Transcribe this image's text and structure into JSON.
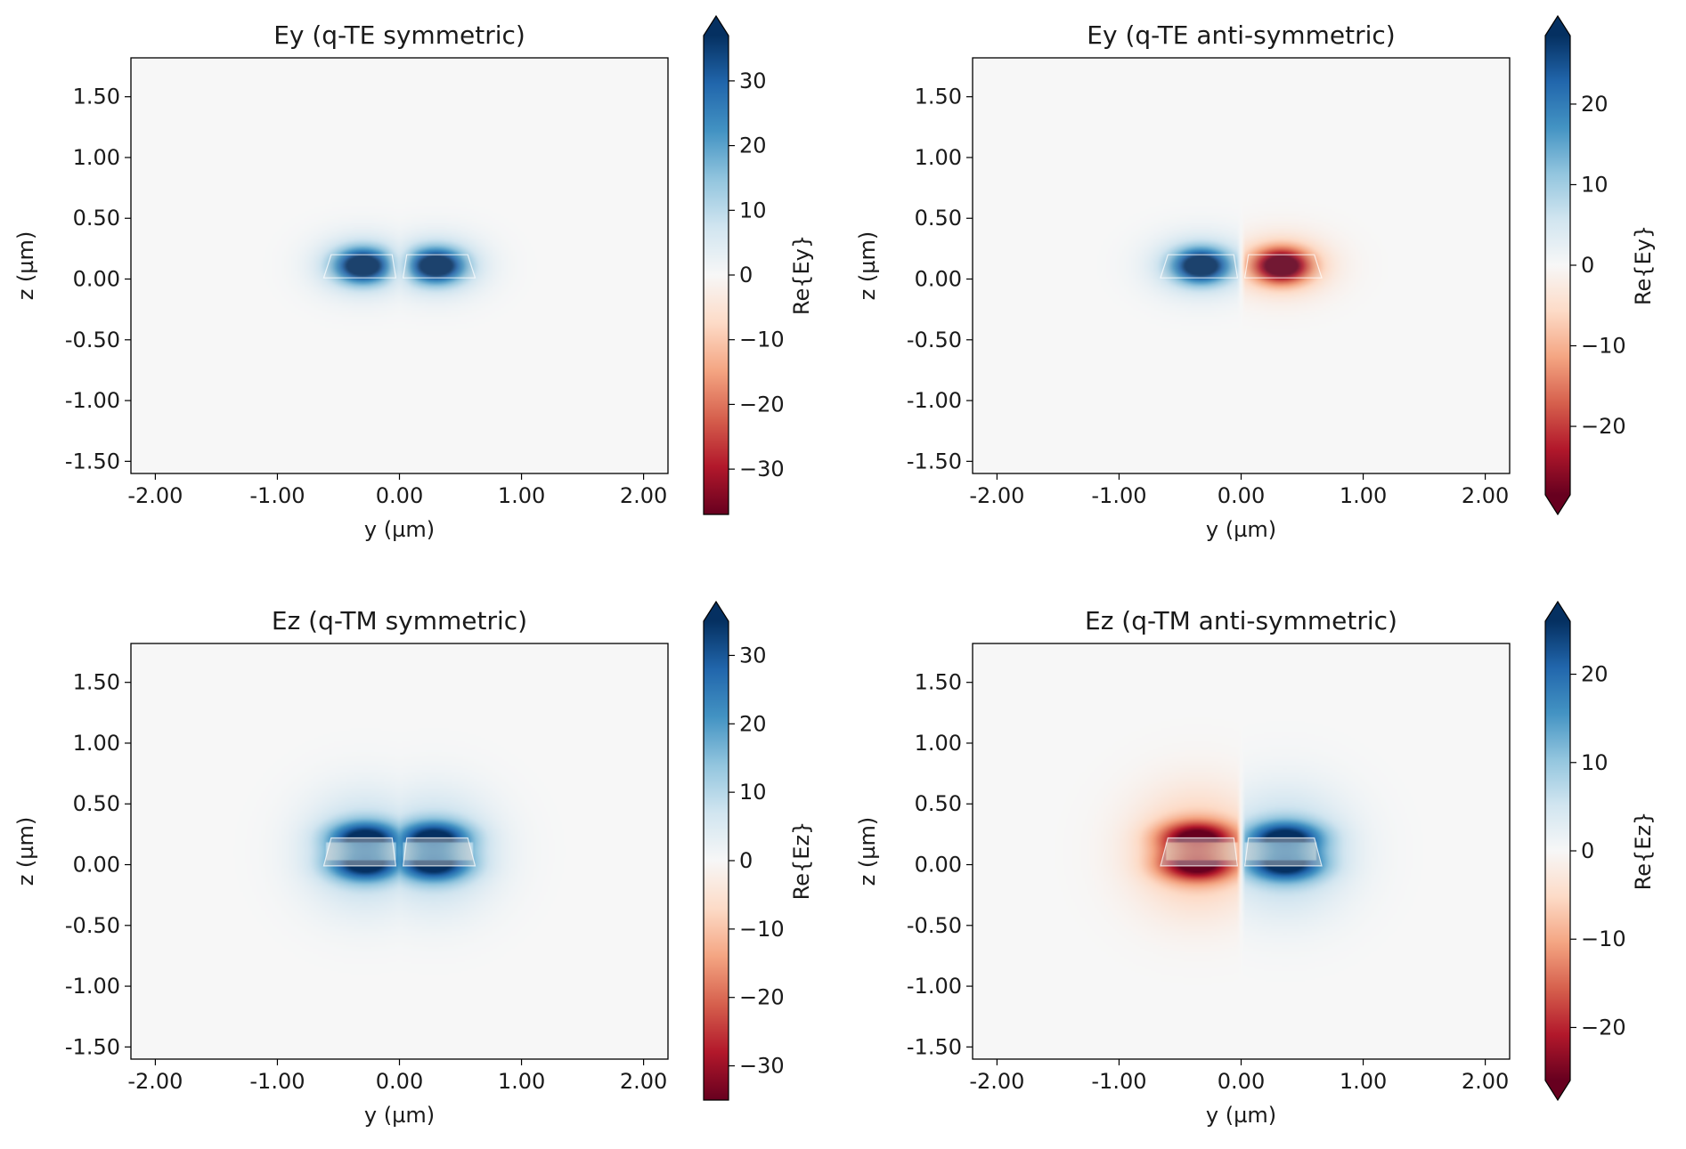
{
  "chart_data": [
    {
      "type": "heatmap",
      "title": "Ey (q-TE symmetric)",
      "xlabel": "y (µm)",
      "ylabel": "z (µm)",
      "colorbar_label": "Re{Ey}",
      "xlim": [
        -2.2,
        2.2
      ],
      "ylim": [
        -1.6,
        1.82
      ],
      "x_ticks": [
        -2,
        -1,
        0,
        1,
        2
      ],
      "x_tick_labels": [
        "-2.00",
        "-1.00",
        "0.00",
        "1.00",
        "2.00"
      ],
      "y_ticks": [
        1.5,
        1.0,
        0.5,
        0.0,
        -0.5,
        -1.0,
        -1.5
      ],
      "y_tick_labels": [
        "1.50",
        "1.00",
        "0.50",
        "0.00",
        "-0.50",
        "-1.00",
        "-1.50"
      ],
      "clim": [
        -37,
        37
      ],
      "colorbar_ticks": [
        30,
        20,
        10,
        0,
        -10,
        -20,
        -30
      ],
      "colorbar_tick_labels": [
        "30",
        "20",
        "10",
        "0",
        "−10",
        "−20",
        "−30"
      ],
      "colorbar_extend": "upper",
      "colormap": "RdBu",
      "mode": "te_sym",
      "field_peaks": [
        {
          "y": -0.3,
          "z": 0.11,
          "value": 37
        },
        {
          "y": 0.3,
          "z": 0.11,
          "value": 37
        }
      ]
    },
    {
      "type": "heatmap",
      "title": "Ey (q-TE anti-symmetric)",
      "xlabel": "y (µm)",
      "ylabel": "z (µm)",
      "colorbar_label": "Re{Ey}",
      "xlim": [
        -2.2,
        2.2
      ],
      "ylim": [
        -1.6,
        1.82
      ],
      "x_ticks": [
        -2,
        -1,
        0,
        1,
        2
      ],
      "x_tick_labels": [
        "-2.00",
        "-1.00",
        "0.00",
        "1.00",
        "2.00"
      ],
      "y_ticks": [
        1.5,
        1.0,
        0.5,
        0.0,
        -0.5,
        -1.0,
        -1.5
      ],
      "y_tick_labels": [
        "1.50",
        "1.00",
        "0.50",
        "0.00",
        "-0.50",
        "-1.00",
        "-1.50"
      ],
      "clim": [
        -28.5,
        28.5
      ],
      "colorbar_ticks": [
        20,
        10,
        0,
        -10,
        -20
      ],
      "colorbar_tick_labels": [
        "20",
        "10",
        "0",
        "−10",
        "−20"
      ],
      "colorbar_extend": "both",
      "colormap": "RdBu",
      "mode": "te_anti",
      "field_peaks": [
        {
          "y": -0.33,
          "z": 0.11,
          "value": 28.5
        },
        {
          "y": 0.33,
          "z": 0.11,
          "value": -28.5
        }
      ]
    },
    {
      "type": "heatmap",
      "title": "Ez (q-TM symmetric)",
      "xlabel": "y (µm)",
      "ylabel": "z (µm)",
      "colorbar_label": "Re{Ez}",
      "xlim": [
        -2.2,
        2.2
      ],
      "ylim": [
        -1.6,
        1.82
      ],
      "x_ticks": [
        -2,
        -1,
        0,
        1,
        2
      ],
      "x_tick_labels": [
        "-2.00",
        "-1.00",
        "0.00",
        "1.00",
        "2.00"
      ],
      "y_ticks": [
        1.5,
        1.0,
        0.5,
        0.0,
        -0.5,
        -1.0,
        -1.5
      ],
      "y_tick_labels": [
        "1.50",
        "1.00",
        "0.50",
        "0.00",
        "-0.50",
        "-1.00",
        "-1.50"
      ],
      "clim": [
        -35,
        35
      ],
      "colorbar_ticks": [
        30,
        20,
        10,
        0,
        -10,
        -20,
        -30
      ],
      "colorbar_tick_labels": [
        "30",
        "20",
        "10",
        "0",
        "−10",
        "−20",
        "−30"
      ],
      "colorbar_extend": "upper",
      "colormap": "RdBu",
      "mode": "tm_sym",
      "field_peaks": [
        {
          "y": -0.28,
          "z": 0.22,
          "value": 35
        },
        {
          "y": 0.28,
          "z": 0.22,
          "value": 35
        },
        {
          "y": -0.28,
          "z": 0.0,
          "value": 35
        },
        {
          "y": 0.28,
          "z": 0.0,
          "value": 35
        }
      ]
    },
    {
      "type": "heatmap",
      "title": "Ez (q-TM anti-symmetric)",
      "xlabel": "y (µm)",
      "ylabel": "z (µm)",
      "colorbar_label": "Re{Ez}",
      "xlim": [
        -2.2,
        2.2
      ],
      "ylim": [
        -1.6,
        1.82
      ],
      "x_ticks": [
        -2,
        -1,
        0,
        1,
        2
      ],
      "x_tick_labels": [
        "-2.00",
        "-1.00",
        "0.00",
        "1.00",
        "2.00"
      ],
      "y_ticks": [
        1.5,
        1.0,
        0.5,
        0.0,
        -0.5,
        -1.0,
        -1.5
      ],
      "y_tick_labels": [
        "1.50",
        "1.00",
        "0.50",
        "0.00",
        "-0.50",
        "-1.00",
        "-1.50"
      ],
      "clim": [
        -26,
        26
      ],
      "colorbar_ticks": [
        20,
        10,
        0,
        -10,
        -20
      ],
      "colorbar_tick_labels": [
        "20",
        "10",
        "0",
        "−10",
        "−20"
      ],
      "colorbar_extend": "both",
      "colormap": "RdBu",
      "mode": "tm_anti",
      "field_peaks": [
        {
          "y": -0.35,
          "z": 0.22,
          "value": -26
        },
        {
          "y": 0.35,
          "z": 0.22,
          "value": 26
        },
        {
          "y": -0.35,
          "z": 0.0,
          "value": -26
        },
        {
          "y": 0.35,
          "z": 0.0,
          "value": 26
        }
      ]
    }
  ],
  "waveguide": {
    "core_color": "#c8c8c8",
    "edge_color": "#ffffff"
  }
}
